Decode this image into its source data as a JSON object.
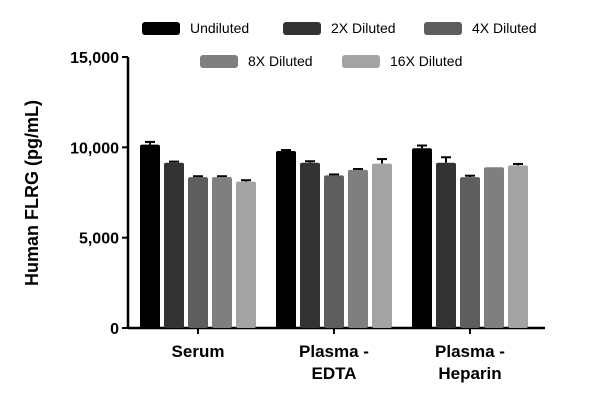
{
  "chart_data": {
    "type": "bar",
    "title": "",
    "xlabel": "",
    "ylabel": "Human FLRG (pg/mL)",
    "ylim": [
      0,
      15000
    ],
    "yticks": [
      0,
      5000,
      10000,
      15000
    ],
    "ytick_labels": [
      "0",
      "5,000",
      "10,000",
      "15,000"
    ],
    "categories": [
      [
        "Serum"
      ],
      [
        "Plasma -",
        "EDTA"
      ],
      [
        "Plasma -",
        "Heparin"
      ]
    ],
    "legend_position": "top",
    "grid": false,
    "series": [
      {
        "name": "Undiluted",
        "color": "#000000",
        "values": [
          10150,
          9800,
          9950
        ],
        "errors": [
          150,
          50,
          150
        ]
      },
      {
        "name": "2X Diluted",
        "color": "#333333",
        "values": [
          9150,
          9150,
          9150
        ],
        "errors": [
          60,
          80,
          300
        ]
      },
      {
        "name": "4X Diluted",
        "color": "#5e5e5e",
        "values": [
          8350,
          8450,
          8350
        ],
        "errors": [
          50,
          50,
          80
        ]
      },
      {
        "name": "8X Diluted",
        "color": "#7f7f7f",
        "values": [
          8350,
          8750,
          8900
        ],
        "errors": [
          50,
          50,
          0
        ]
      },
      {
        "name": "16X Diluted",
        "color": "#a3a3a3",
        "values": [
          8100,
          9100,
          9000
        ],
        "errors": [
          80,
          250,
          80
        ]
      }
    ]
  }
}
